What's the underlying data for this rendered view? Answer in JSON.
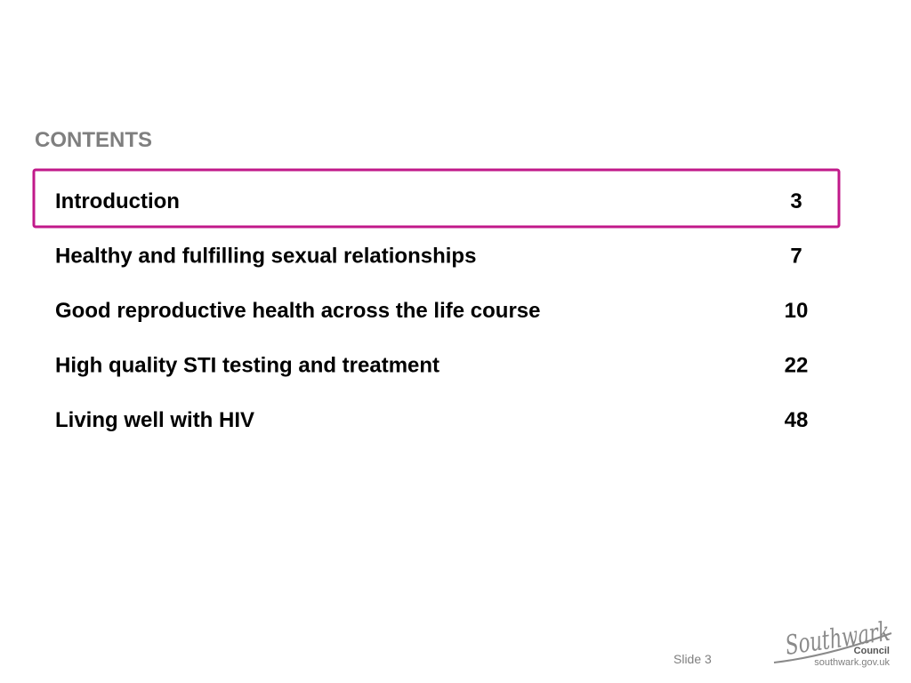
{
  "header": {
    "title": "CONTENTS"
  },
  "contents": [
    {
      "label": "Introduction",
      "page": 3,
      "highlighted": true
    },
    {
      "label": "Healthy and fulfilling sexual relationships",
      "page": 7,
      "highlighted": false
    },
    {
      "label": "Good reproductive health across the life course",
      "page": 10,
      "highlighted": false
    },
    {
      "label": "High quality STI testing and treatment",
      "page": 22,
      "highlighted": false
    },
    {
      "label": "Living well with HIV",
      "page": 48,
      "highlighted": false
    }
  ],
  "footer": {
    "slide": "Slide 3",
    "logo": {
      "name": "Southwark",
      "sub": "Council",
      "url": "southwark.gov.uk"
    }
  }
}
